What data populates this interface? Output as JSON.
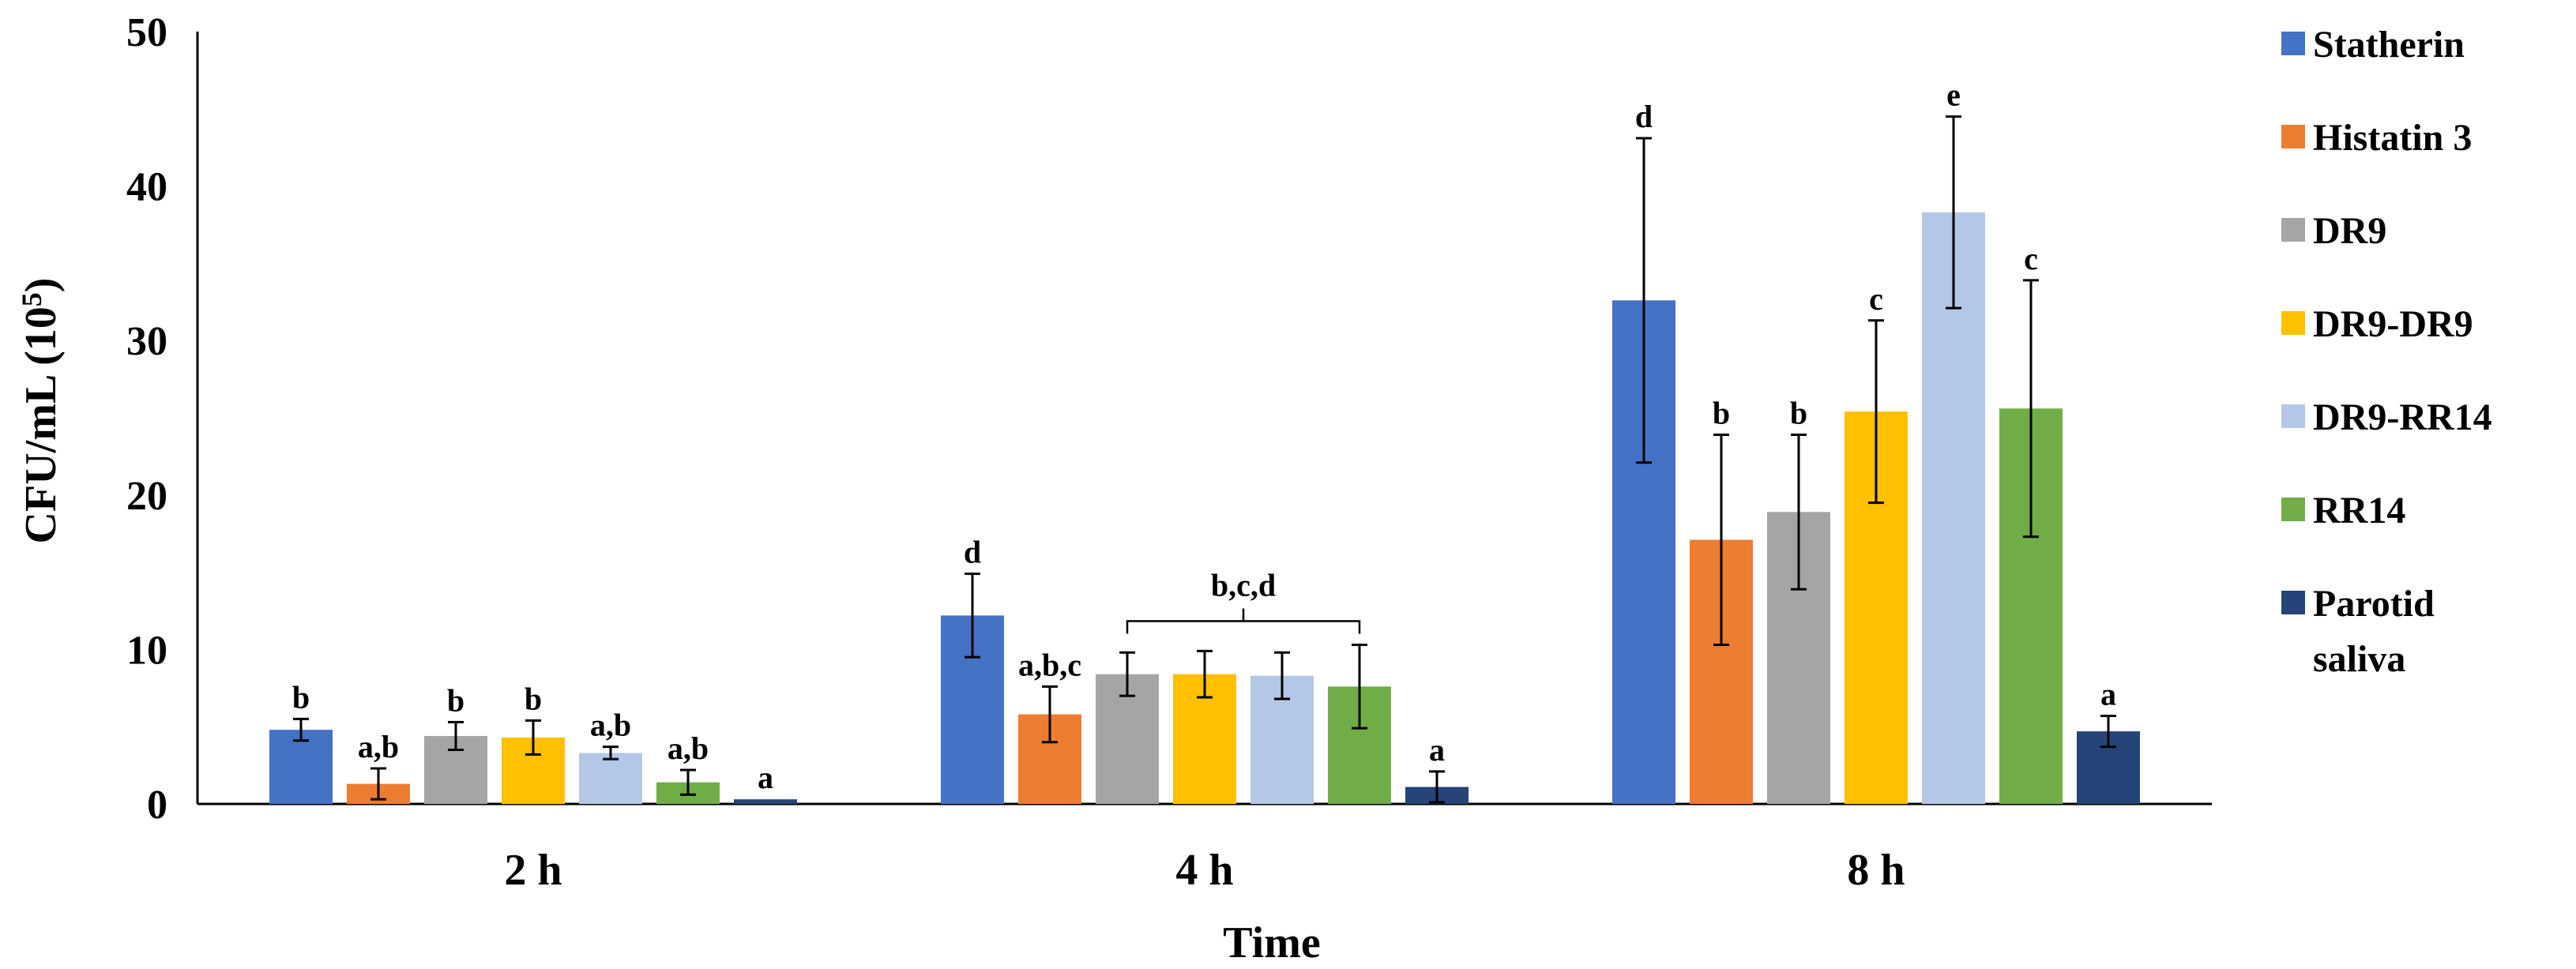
{
  "chart_data": {
    "type": "bar",
    "title": "",
    "xlabel": "Time",
    "ylabel": "CFU/mL (10",
    "ylabel_exponent": "5",
    "ylabel_close": ")",
    "ylim": [
      0,
      50
    ],
    "yticks": [
      "0",
      "10",
      "20",
      "30",
      "40",
      "50"
    ],
    "categories": [
      "2 h",
      "4 h",
      "8 h"
    ],
    "series": [
      {
        "name": "Statherin",
        "color": "#4472C4",
        "values": [
          4.8,
          12.2,
          32.6
        ],
        "errors": [
          0.7,
          2.7,
          10.5
        ],
        "sig": [
          "b",
          "d",
          "d"
        ]
      },
      {
        "name": "Histatin 3",
        "color": "#ED7D31",
        "values": [
          1.3,
          5.8,
          17.1
        ],
        "errors": [
          1.0,
          1.8,
          6.8
        ],
        "sig": [
          "a,b",
          "a,b,c",
          "b"
        ]
      },
      {
        "name": "DR9",
        "color": "#A5A5A5",
        "values": [
          4.4,
          8.4,
          18.9
        ],
        "errors": [
          0.9,
          1.4,
          5.0
        ],
        "sig": [
          "b",
          "",
          "b"
        ]
      },
      {
        "name": "DR9-DR9",
        "color": "#FFC000",
        "values": [
          4.3,
          8.4,
          25.4
        ],
        "errors": [
          1.1,
          1.5,
          5.9
        ],
        "sig": [
          "b",
          "",
          "c"
        ]
      },
      {
        "name": "DR9-RR14",
        "color": "#B4C7E7",
        "values": [
          3.3,
          8.3,
          38.3
        ],
        "errors": [
          0.4,
          1.5,
          6.2
        ],
        "sig": [
          "a,b",
          "",
          "e"
        ]
      },
      {
        "name": "RR14",
        "color": "#70AD47",
        "values": [
          1.4,
          7.6,
          25.6
        ],
        "errors": [
          0.8,
          2.7,
          8.3
        ],
        "sig": [
          "a,b",
          "",
          "c"
        ]
      },
      {
        "name": "Parotid saliva",
        "legend_lines": [
          "Parotid",
          "saliva"
        ],
        "color": "#264478",
        "values": [
          0.3,
          1.1,
          4.7
        ],
        "errors": [
          0.0,
          1.0,
          1.0
        ],
        "sig": [
          "a",
          "a",
          "a"
        ]
      }
    ],
    "annotations": [
      {
        "text": "b,c,d",
        "category": "4 h",
        "bracket_series": [
          "DR9",
          "RR14"
        ]
      }
    ],
    "legend": "right",
    "grid": false
  }
}
